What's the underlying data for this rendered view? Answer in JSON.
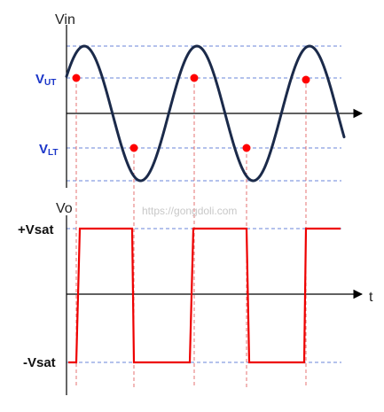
{
  "top_plot": {
    "ylabel": "Vin",
    "thresholds": {
      "upper": {
        "main": "V",
        "sub": "UT"
      },
      "lower": {
        "main": "V",
        "sub": "LT"
      }
    },
    "colors": {
      "signal": "#1b2a4a",
      "marker": "#ff0000",
      "guide": "#3a5fcd",
      "threshold_label": "#1a35c8"
    }
  },
  "bottom_plot": {
    "ylabel": "Vo",
    "xlabel": "t",
    "levels": {
      "high": "+Vsat",
      "low": "-Vsat"
    },
    "colors": {
      "output": "#ee0000",
      "guide": "#3a5fcd"
    }
  },
  "watermark": "https://gongdoli.com",
  "switch_points": [
    {
      "kind": "upper-crossing"
    },
    {
      "kind": "lower-crossing"
    },
    {
      "kind": "upper-crossing"
    },
    {
      "kind": "lower-crossing"
    },
    {
      "kind": "upper-crossing"
    }
  ]
}
